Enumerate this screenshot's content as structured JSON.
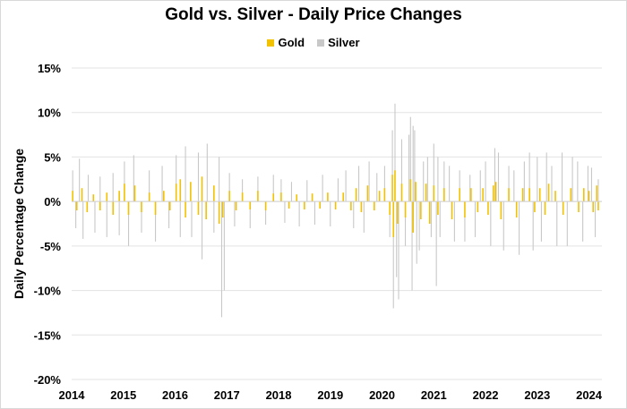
{
  "chart_data": {
    "type": "bar",
    "title": "Gold vs. Silver - Daily Price Changes",
    "xlabel": "",
    "ylabel": "Daily Percentage Change",
    "x_range": [
      2014.0,
      2024.25
    ],
    "ylim": [
      -20,
      15
    ],
    "y_ticks": [
      15,
      10,
      5,
      0,
      -5,
      -10,
      -15,
      -20
    ],
    "y_tick_labels": [
      "15%",
      "10%",
      "5%",
      "0%",
      "-5%",
      "-10%",
      "-15%",
      "-20%"
    ],
    "x_ticks": [
      2014,
      2015,
      2016,
      2017,
      2018,
      2019,
      2020,
      2021,
      2022,
      2023,
      2024
    ],
    "x_tick_labels": [
      "2014",
      "2015",
      "2016",
      "2017",
      "2018",
      "2019",
      "2020",
      "2021",
      "2022",
      "2023",
      "2024"
    ],
    "grid": "horizontal",
    "legend_position": "top-center",
    "series": [
      {
        "name": "Silver",
        "color": "#c8c8c8",
        "x": [
          2014.02,
          2014.08,
          2014.15,
          2014.22,
          2014.32,
          2014.45,
          2014.55,
          2014.68,
          2014.8,
          2014.92,
          2015.02,
          2015.1,
          2015.2,
          2015.35,
          2015.5,
          2015.62,
          2015.75,
          2015.88,
          2016.02,
          2016.1,
          2016.2,
          2016.32,
          2016.45,
          2016.52,
          2016.62,
          2016.75,
          2016.85,
          2016.9,
          2016.95,
          2017.05,
          2017.15,
          2017.3,
          2017.45,
          2017.6,
          2017.75,
          2017.9,
          2018.05,
          2018.12,
          2018.25,
          2018.4,
          2018.55,
          2018.7,
          2018.85,
          2019.0,
          2019.15,
          2019.3,
          2019.45,
          2019.55,
          2019.65,
          2019.75,
          2019.9,
          2020.05,
          2020.15,
          2020.2,
          2020.22,
          2020.25,
          2020.28,
          2020.32,
          2020.38,
          2020.45,
          2020.52,
          2020.55,
          2020.58,
          2020.6,
          2020.63,
          2020.67,
          2020.72,
          2020.8,
          2020.88,
          2020.95,
          2021.0,
          2021.05,
          2021.08,
          2021.12,
          2021.2,
          2021.3,
          2021.4,
          2021.5,
          2021.6,
          2021.7,
          2021.8,
          2021.9,
          2022.0,
          2022.1,
          2022.18,
          2022.25,
          2022.35,
          2022.45,
          2022.55,
          2022.65,
          2022.75,
          2022.85,
          2022.92,
          2023.0,
          2023.08,
          2023.18,
          2023.28,
          2023.38,
          2023.48,
          2023.58,
          2023.68,
          2023.78,
          2023.88,
          2023.98,
          2024.05,
          2024.12,
          2024.18
        ],
        "values": [
          3.5,
          -3.0,
          4.8,
          -4.2,
          3.0,
          -3.5,
          2.8,
          -4.0,
          3.2,
          -3.8,
          4.5,
          -5.0,
          5.2,
          -3.5,
          3.5,
          -4.5,
          4.0,
          -3.0,
          5.2,
          -4.0,
          6.2,
          -4.0,
          5.5,
          -6.5,
          6.5,
          -3.5,
          5.0,
          -13.0,
          -10.0,
          3.2,
          -2.8,
          2.5,
          -3.0,
          2.8,
          -2.6,
          3.0,
          2.5,
          -2.4,
          2.2,
          -2.8,
          2.4,
          -2.6,
          3.0,
          -2.8,
          2.6,
          3.5,
          -3.0,
          4.0,
          -3.5,
          4.5,
          3.2,
          4.0,
          -4.0,
          8.0,
          -12.0,
          11.0,
          -8.5,
          -11.0,
          7.0,
          -5.0,
          7.5,
          9.5,
          -10.0,
          8.5,
          8.0,
          -7.0,
          -5.5,
          4.5,
          5.0,
          -4.0,
          6.5,
          -9.5,
          5.0,
          -4.0,
          4.5,
          4.0,
          -4.5,
          3.5,
          -4.5,
          3.0,
          -4.0,
          3.5,
          4.5,
          -5.0,
          6.0,
          5.5,
          -5.5,
          4.0,
          3.5,
          -6.0,
          4.5,
          5.5,
          -5.5,
          5.0,
          -4.5,
          5.5,
          4.0,
          -5.0,
          5.5,
          -5.0,
          5.0,
          4.5,
          -4.5,
          4.0,
          3.8,
          -4.0,
          2.5
        ]
      },
      {
        "name": "Gold",
        "color": "#f2c200",
        "x": [
          2014.02,
          2014.1,
          2014.2,
          2014.3,
          2014.42,
          2014.55,
          2014.68,
          2014.8,
          2014.92,
          2015.02,
          2015.1,
          2015.22,
          2015.35,
          2015.5,
          2015.62,
          2015.78,
          2015.9,
          2016.02,
          2016.1,
          2016.2,
          2016.3,
          2016.45,
          2016.52,
          2016.6,
          2016.75,
          2016.85,
          2016.92,
          2017.05,
          2017.18,
          2017.3,
          2017.45,
          2017.6,
          2017.75,
          2017.9,
          2018.05,
          2018.2,
          2018.35,
          2018.5,
          2018.65,
          2018.8,
          2018.95,
          2019.1,
          2019.25,
          2019.4,
          2019.5,
          2019.6,
          2019.72,
          2019.85,
          2019.95,
          2020.05,
          2020.15,
          2020.2,
          2020.22,
          2020.25,
          2020.3,
          2020.38,
          2020.45,
          2020.55,
          2020.6,
          2020.65,
          2020.75,
          2020.85,
          2020.92,
          2021.0,
          2021.08,
          2021.2,
          2021.35,
          2021.5,
          2021.6,
          2021.72,
          2021.85,
          2021.95,
          2022.05,
          2022.15,
          2022.2,
          2022.3,
          2022.45,
          2022.6,
          2022.72,
          2022.85,
          2022.95,
          2023.05,
          2023.15,
          2023.22,
          2023.35,
          2023.5,
          2023.65,
          2023.8,
          2023.9,
          2024.0,
          2024.08,
          2024.15,
          2024.18
        ],
        "values": [
          1.2,
          -1.0,
          1.5,
          -1.2,
          0.8,
          -1.0,
          1.0,
          -1.5,
          1.2,
          2.0,
          -1.5,
          1.8,
          -1.2,
          1.0,
          -1.5,
          1.2,
          -1.0,
          2.0,
          2.5,
          -1.8,
          2.2,
          -1.5,
          2.8,
          -2.0,
          1.8,
          -2.5,
          -1.8,
          1.2,
          -1.0,
          1.0,
          -0.9,
          1.2,
          -1.0,
          0.9,
          1.0,
          -0.8,
          0.8,
          -0.9,
          0.9,
          -0.8,
          1.0,
          -0.9,
          1.0,
          -1.0,
          1.5,
          -1.2,
          1.8,
          -1.0,
          1.2,
          1.5,
          -1.5,
          3.0,
          -4.0,
          3.5,
          -2.5,
          2.0,
          -1.8,
          2.5,
          -3.5,
          2.2,
          -2.0,
          2.0,
          -2.5,
          1.8,
          -1.5,
          1.5,
          -2.0,
          1.5,
          -1.8,
          1.5,
          -1.2,
          1.5,
          -1.5,
          1.8,
          2.2,
          -2.0,
          1.5,
          -1.8,
          1.5,
          1.5,
          -1.2,
          1.5,
          -1.5,
          2.0,
          1.2,
          -1.5,
          1.5,
          -1.2,
          1.5,
          1.2,
          -1.2,
          1.8,
          -1.0
        ]
      }
    ]
  }
}
